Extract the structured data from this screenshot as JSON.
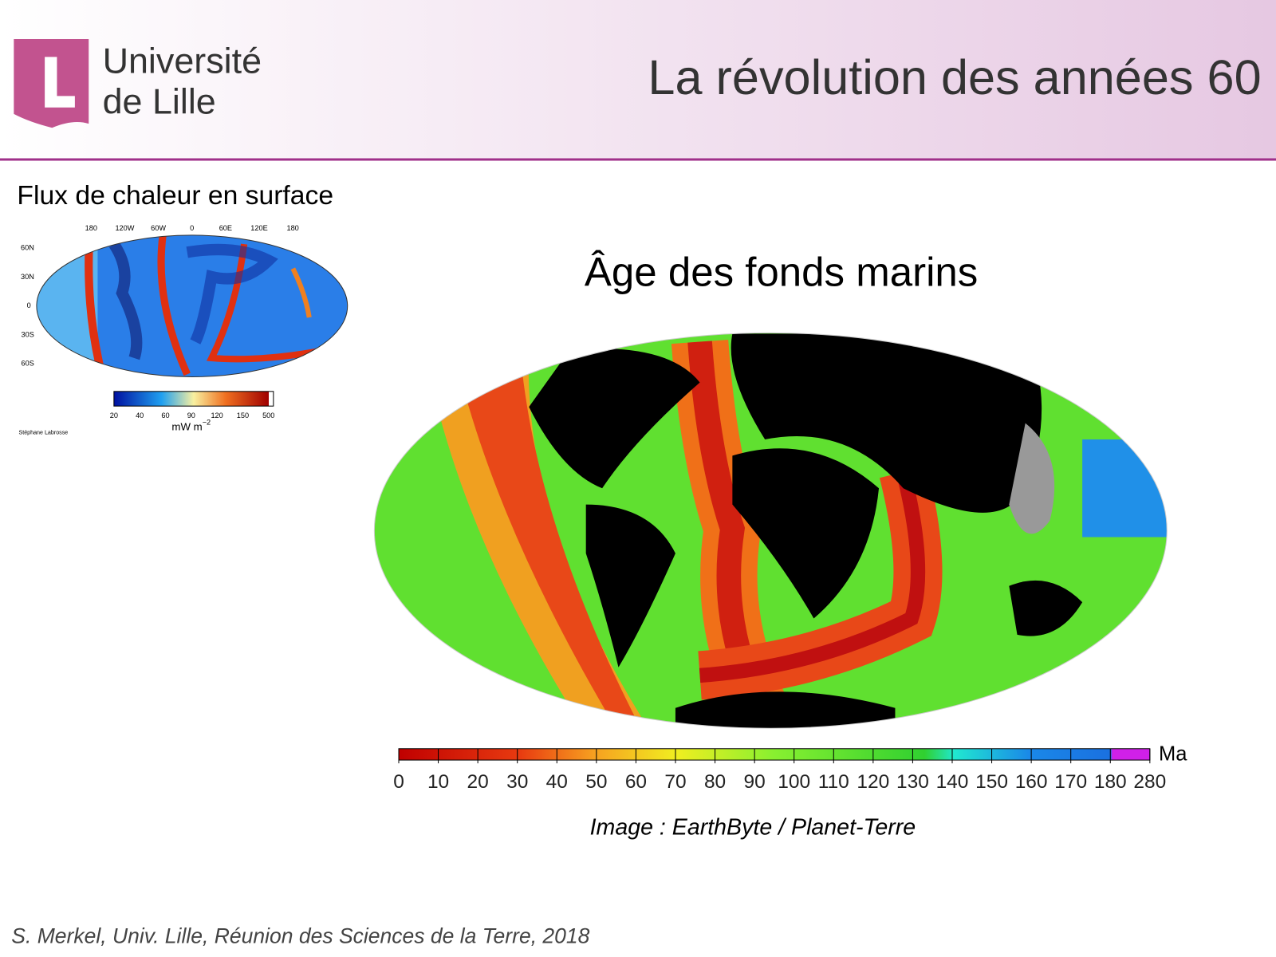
{
  "header": {
    "logo": {
      "line1": "Université",
      "line2": "de Lille"
    },
    "title": "La révolution des années 60"
  },
  "heat_flow": {
    "title": "Flux de chaleur en surface",
    "longitudes": [
      "180",
      "120W",
      "60W",
      "0",
      "60E",
      "120E",
      "180"
    ],
    "latitudes": [
      "60N",
      "30N",
      "0",
      "30S",
      "60S"
    ],
    "colorbar_ticks": [
      20,
      40,
      60,
      90,
      120,
      150,
      500
    ],
    "unit": {
      "base": "mW m",
      "exponent": "−2"
    },
    "credit": "Stéphane Labrosse"
  },
  "seafloor_age": {
    "title": "Âge des fonds marins",
    "colorbar_ticks": [
      0,
      10,
      20,
      30,
      40,
      50,
      60,
      70,
      80,
      90,
      100,
      110,
      120,
      130,
      140,
      150,
      160,
      170,
      180,
      280
    ],
    "unit": "Ma",
    "credit": "Image : EarthByte / Planet-Terre"
  },
  "footer": "S. Merkel, Univ. Lille, Réunion des Sciences de la Terre, 2018"
}
